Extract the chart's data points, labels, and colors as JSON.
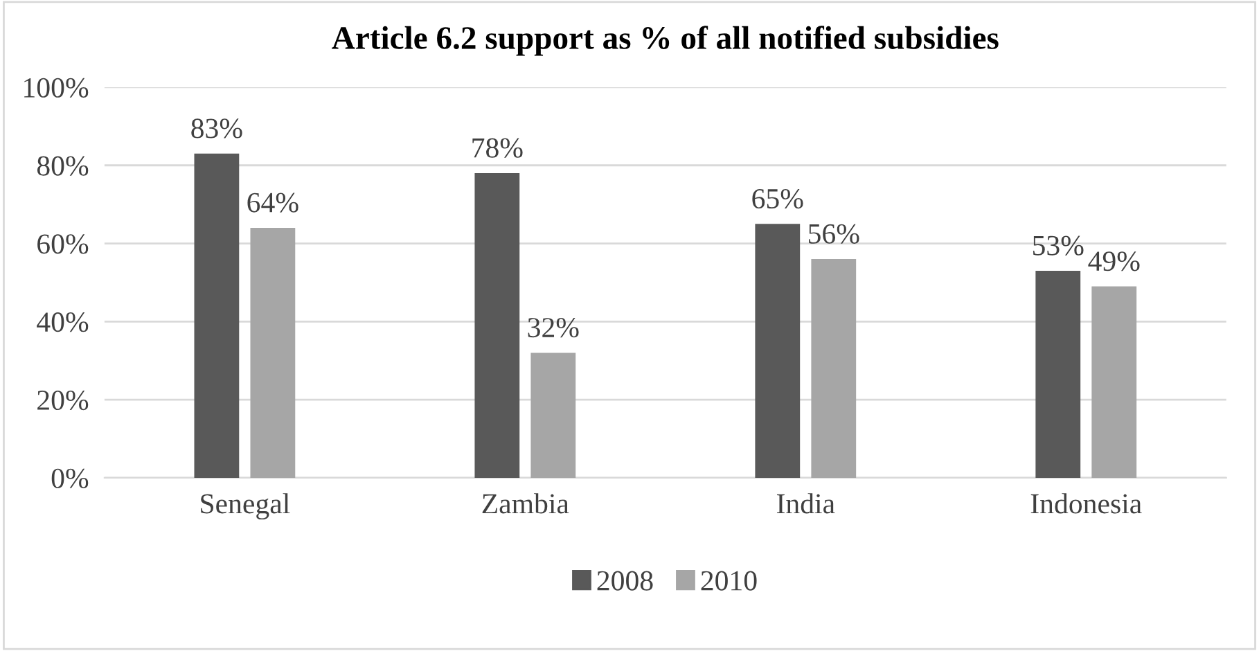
{
  "chart_data": {
    "type": "bar",
    "title": "Article 6.2 support as % of all notified subsidies",
    "categories": [
      "Senegal",
      "Zambia",
      "India",
      "Indonesia"
    ],
    "series": [
      {
        "name": "2008",
        "color": "#595959",
        "values": [
          83,
          78,
          65,
          53
        ],
        "value_labels": [
          "83%",
          "78%",
          "65%",
          "53%"
        ]
      },
      {
        "name": "2010",
        "color": "#a6a6a6",
        "values": [
          64,
          32,
          56,
          49
        ],
        "value_labels": [
          "64%",
          "32%",
          "56%",
          "49%"
        ]
      }
    ],
    "ylim": [
      0,
      100
    ],
    "yticks": [
      {
        "value": 0,
        "label": "0%"
      },
      {
        "value": 20,
        "label": "20%"
      },
      {
        "value": 40,
        "label": "40%"
      },
      {
        "value": 60,
        "label": "60%"
      },
      {
        "value": 80,
        "label": "80%"
      },
      {
        "value": 100,
        "label": "100%"
      }
    ],
    "grid": "y",
    "legend": "bottom"
  }
}
